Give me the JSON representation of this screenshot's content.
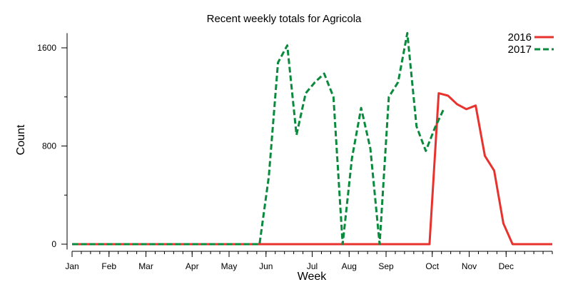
{
  "chart_data": {
    "type": "line",
    "title": "Recent weekly totals for Agricola",
    "xlabel": "Week",
    "ylabel": "Count",
    "ylim": [
      -20,
      1720
    ],
    "xlim": [
      0,
      52
    ],
    "y_ticks_major": [
      0,
      800,
      1600
    ],
    "y_ticks_major_labels": [
      "0",
      "800",
      "1600"
    ],
    "y_ticks_minor": [
      400,
      1200
    ],
    "x_ticks": [
      {
        "label": "Jan",
        "week": 0
      },
      {
        "label": "Feb",
        "week": 4
      },
      {
        "label": "Mar",
        "week": 8
      },
      {
        "label": "Apr",
        "week": 13
      },
      {
        "label": "May",
        "week": 17
      },
      {
        "label": "Jun",
        "week": 21
      },
      {
        "label": "Jul",
        "week": 26
      },
      {
        "label": "Aug",
        "week": 30
      },
      {
        "label": "Sep",
        "week": 34
      },
      {
        "label": "Oct",
        "week": 39
      },
      {
        "label": "Nov",
        "week": 43
      },
      {
        "label": "Dec",
        "week": 47
      }
    ],
    "legend_position": "top-right",
    "series": [
      {
        "name": "2016",
        "color": "#e8322d",
        "dash": "solid",
        "x": [
          0,
          38.7,
          39.7,
          40.7,
          41.7,
          42.7,
          43.7,
          44.7,
          45.7,
          46.7,
          47.7,
          48.7,
          49.7,
          50.7,
          51.7,
          52
        ],
        "y": [
          0,
          0,
          1230,
          1210,
          1140,
          1100,
          1130,
          720,
          600,
          170,
          0,
          0,
          0,
          0,
          0,
          0
        ]
      },
      {
        "name": "2017",
        "color": "#0a8a3c",
        "dash": "dashed",
        "x": [
          0,
          20.3,
          21.3,
          22.3,
          23.3,
          24.3,
          25.3,
          26.3,
          27.3,
          28.3,
          29.3,
          30.3,
          31.3,
          32.3,
          33.3,
          34.3,
          35.3,
          36.3,
          37.3,
          38.3,
          39.3,
          40.3
        ],
        "y": [
          0,
          0,
          550,
          1480,
          1620,
          890,
          1230,
          1320,
          1390,
          1200,
          0,
          700,
          1110,
          780,
          0,
          1200,
          1320,
          1720,
          960,
          760,
          950,
          1110
        ]
      }
    ]
  }
}
